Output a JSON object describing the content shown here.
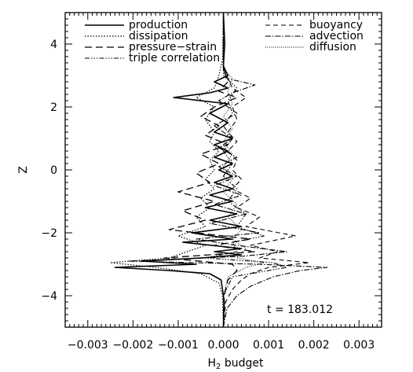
{
  "chart_data": {
    "type": "line",
    "xlabel": "H",
    "xlabel_sub": "2",
    "xlabel_suffix": " budget",
    "ylabel": "Z",
    "xlim": [
      -0.0035,
      0.0035
    ],
    "ylim": [
      -5,
      5
    ],
    "x_ticks": [
      -0.003,
      -0.002,
      -0.001,
      0.0,
      0.001,
      0.002,
      0.003
    ],
    "x_tick_labels": [
      "−0.003",
      "−0.002",
      "−0.001",
      "0.000",
      "0.001",
      "0.002",
      "0.003"
    ],
    "y_ticks": [
      -4,
      -2,
      0,
      2,
      4
    ],
    "y_tick_labels": [
      "−4",
      "−2",
      "0",
      "2",
      "4"
    ],
    "annotation": "t = 183.012",
    "legend_left": [
      "production",
      "dissipation",
      "pressure−strain",
      "triple correlation"
    ],
    "legend_right": [
      "buoyancy",
      "advection",
      "diffusion"
    ],
    "series": [
      {
        "name": "production",
        "dash": "solid",
        "color": "#000000",
        "width": 1.6,
        "points": [
          [
            -5,
            0
          ],
          [
            -4.2,
            2e-05
          ],
          [
            -3.8,
            -2e-05
          ],
          [
            -3.5,
            -5e-05
          ],
          [
            -3.3,
            -0.0003
          ],
          [
            -3.2,
            -0.0012
          ],
          [
            -3.1,
            -0.0024
          ],
          [
            -3.0,
            -0.0006
          ],
          [
            -2.9,
            -0.0018
          ],
          [
            -2.8,
            -0.0005
          ],
          [
            -2.7,
            0.0004
          ],
          [
            -2.6,
            -0.0002
          ],
          [
            -2.5,
            0.0004
          ],
          [
            -2.3,
            -0.0009
          ],
          [
            -2.2,
            0.0002
          ],
          [
            -2.0,
            -0.0007
          ],
          [
            -1.8,
            0.0004
          ],
          [
            -1.6,
            -0.0003
          ],
          [
            -1.4,
            0.0003
          ],
          [
            -1.2,
            -0.0004
          ],
          [
            -1.0,
            0.0002
          ],
          [
            -0.8,
            -0.0003
          ],
          [
            -0.6,
            0.0002
          ],
          [
            -0.4,
            -0.0002
          ],
          [
            -0.2,
            0.0002
          ],
          [
            0.0,
            -0.0001
          ],
          [
            0.2,
            0.0002
          ],
          [
            0.4,
            -0.0002
          ],
          [
            0.6,
            0.0001
          ],
          [
            0.8,
            -0.0002
          ],
          [
            1.0,
            0.0002
          ],
          [
            1.2,
            -0.0002
          ],
          [
            1.5,
            0.0001
          ],
          [
            1.8,
            -0.0003
          ],
          [
            2.1,
            0.0001
          ],
          [
            2.3,
            -0.0011
          ],
          [
            2.45,
            -0.0003
          ],
          [
            2.6,
            0.0001
          ],
          [
            2.8,
            -0.0002
          ],
          [
            3.0,
            0.0001
          ],
          [
            3.3,
            0.0
          ],
          [
            4.0,
            3e-05
          ],
          [
            5,
            0
          ]
        ]
      },
      {
        "name": "dissipation",
        "dash": "1.5,2",
        "color": "#000000",
        "width": 1.2,
        "points": [
          [
            -5,
            0
          ],
          [
            -4,
            -2e-05
          ],
          [
            -3.6,
            -0.0001
          ],
          [
            -3.3,
            -0.0005
          ],
          [
            -3.1,
            -0.0015
          ],
          [
            -2.95,
            -0.0025
          ],
          [
            -2.8,
            -0.0012
          ],
          [
            -2.6,
            -0.0008
          ],
          [
            -2.4,
            -0.0004
          ],
          [
            -2.1,
            -0.001
          ],
          [
            -1.8,
            -0.0004
          ],
          [
            -1.5,
            -0.0006
          ],
          [
            -1.2,
            -0.0003
          ],
          [
            -0.9,
            -0.0005
          ],
          [
            -0.6,
            -0.0002
          ],
          [
            -0.3,
            -0.0004
          ],
          [
            0.0,
            -0.0002
          ],
          [
            0.3,
            -0.0003
          ],
          [
            0.6,
            -0.0001
          ],
          [
            0.9,
            -0.0003
          ],
          [
            1.2,
            -0.0002
          ],
          [
            1.6,
            -0.0004
          ],
          [
            2.0,
            -0.0002
          ],
          [
            2.3,
            -0.0006
          ],
          [
            2.6,
            -0.0002
          ],
          [
            3.0,
            -0.0001
          ],
          [
            3.5,
            -2e-05
          ],
          [
            5,
            0
          ]
        ]
      },
      {
        "name": "pressure−strain",
        "dash": "9,5",
        "color": "#000000",
        "width": 1.3,
        "points": [
          [
            -5,
            0
          ],
          [
            -4,
            2e-05
          ],
          [
            -3.5,
            0.0001
          ],
          [
            -3.2,
            0.0003
          ],
          [
            -3.0,
            0.0002
          ],
          [
            -2.8,
            -0.0013
          ],
          [
            -2.6,
            0.0007
          ],
          [
            -2.4,
            -0.0002
          ],
          [
            -2.2,
            0.0006
          ],
          [
            -1.9,
            -0.0012
          ],
          [
            -1.6,
            -0.0004
          ],
          [
            -1.3,
            -0.0009
          ],
          [
            -1.0,
            -0.0002
          ],
          [
            -0.7,
            -0.001
          ],
          [
            -0.4,
            -0.0003
          ],
          [
            -0.1,
            -0.0006
          ],
          [
            0.2,
            -0.0001
          ],
          [
            0.5,
            -0.0005
          ],
          [
            0.8,
            0.0001
          ],
          [
            1.1,
            -0.0004
          ],
          [
            1.4,
            -0.0001
          ],
          [
            1.7,
            -0.0005
          ],
          [
            2.0,
            -0.0002
          ],
          [
            2.3,
            0.0003
          ],
          [
            2.5,
            -0.0001
          ],
          [
            2.8,
            0.0001
          ],
          [
            3.2,
            0.0
          ],
          [
            5,
            0
          ]
        ]
      },
      {
        "name": "triple correlation",
        "dash": "6,2,1.5,2,1.5,2,1.5,2",
        "color": "#000000",
        "width": 1.1,
        "points": [
          [
            -5,
            0
          ],
          [
            -4,
            0.0
          ],
          [
            -3.4,
            0.0002
          ],
          [
            -3.1,
            0.0014
          ],
          [
            -2.95,
            0.0011
          ],
          [
            -2.8,
            -0.0004
          ],
          [
            -2.6,
            0.0003
          ],
          [
            -2.3,
            0.0002
          ],
          [
            -2.1,
            0.0009
          ],
          [
            -1.8,
            0.0003
          ],
          [
            -1.4,
            0.0005
          ],
          [
            -1.0,
            0.0001
          ],
          [
            -0.6,
            0.0003
          ],
          [
            -0.2,
            0.0
          ],
          [
            0.2,
            0.0002
          ],
          [
            0.6,
            0.0
          ],
          [
            1.0,
            0.0002
          ],
          [
            1.4,
            0.0
          ],
          [
            1.8,
            0.0002
          ],
          [
            2.2,
            0.0001
          ],
          [
            2.6,
            0.0003
          ],
          [
            3.0,
            0.0
          ],
          [
            5,
            0
          ]
        ]
      },
      {
        "name": "buoyancy",
        "dash": "6,4",
        "color": "#000000",
        "width": 1.1,
        "points": [
          [
            -5,
            0
          ],
          [
            -4.2,
            5e-05
          ],
          [
            -3.8,
            0.0002
          ],
          [
            -3.5,
            0.0004
          ],
          [
            -3.3,
            0.0006
          ],
          [
            -3.1,
            0.001
          ],
          [
            -2.95,
            0.0019
          ],
          [
            -2.8,
            0.0008
          ],
          [
            -2.6,
            0.0012
          ],
          [
            -2.4,
            0.0006
          ],
          [
            -2.1,
            0.0016
          ],
          [
            -1.8,
            0.0005
          ],
          [
            -1.5,
            0.0008
          ],
          [
            -1.2,
            0.0003
          ],
          [
            -0.9,
            0.0006
          ],
          [
            -0.6,
            0.0002
          ],
          [
            -0.3,
            0.0004
          ],
          [
            0.0,
            0.0002
          ],
          [
            0.3,
            0.0003
          ],
          [
            0.6,
            0.0001
          ],
          [
            0.9,
            0.0003
          ],
          [
            1.2,
            0.0001
          ],
          [
            1.6,
            0.0003
          ],
          [
            2.0,
            0.0002
          ],
          [
            2.3,
            0.0005
          ],
          [
            2.6,
            0.0002
          ],
          [
            2.9,
            0.0001
          ],
          [
            3.3,
            0.0
          ],
          [
            5,
            0
          ]
        ]
      },
      {
        "name": "advection",
        "dash": "7,2,1.5,2",
        "color": "#000000",
        "width": 1.1,
        "points": [
          [
            -5,
            0
          ],
          [
            -4.4,
            8e-05
          ],
          [
            -4.0,
            0.0003
          ],
          [
            -3.7,
            0.0006
          ],
          [
            -3.4,
            0.0011
          ],
          [
            -3.2,
            0.0017
          ],
          [
            -3.1,
            0.0023
          ],
          [
            -3.0,
            0.0008
          ],
          [
            -2.9,
            -0.0021
          ],
          [
            -2.75,
            0.0004
          ],
          [
            -2.6,
            0.0014
          ],
          [
            -2.4,
            0.0003
          ],
          [
            -2.2,
            -0.0006
          ],
          [
            -2.0,
            0.0008
          ],
          [
            -1.7,
            -0.0003
          ],
          [
            -1.4,
            0.0005
          ],
          [
            -1.1,
            -0.0002
          ],
          [
            -0.8,
            0.0004
          ],
          [
            -0.5,
            -0.0002
          ],
          [
            -0.2,
            0.0003
          ],
          [
            0.1,
            -0.0001
          ],
          [
            0.4,
            0.0003
          ],
          [
            0.7,
            -0.0001
          ],
          [
            1.0,
            0.0002
          ],
          [
            1.4,
            -0.0002
          ],
          [
            1.8,
            0.0003
          ],
          [
            2.2,
            -0.0001
          ],
          [
            2.45,
            0.0002
          ],
          [
            2.7,
            0.0007
          ],
          [
            2.9,
            0.0001
          ],
          [
            3.2,
            0.0
          ],
          [
            5,
            0
          ]
        ]
      },
      {
        "name": "diffusion",
        "dash": "1,1.5",
        "color": "#000000",
        "width": 0.9,
        "points": [
          [
            -5,
            0
          ],
          [
            -4,
            0.0
          ],
          [
            -3.4,
            0.0001
          ],
          [
            -3.1,
            0.0005
          ],
          [
            -2.95,
            0.0009
          ],
          [
            -2.8,
            0.0003
          ],
          [
            -2.5,
            0.0005
          ],
          [
            -2.2,
            0.0002
          ],
          [
            -1.9,
            0.0004
          ],
          [
            -1.5,
            0.0001
          ],
          [
            -1.1,
            0.0003
          ],
          [
            -0.7,
            0.0
          ],
          [
            -0.3,
            0.0002
          ],
          [
            0.1,
            0.0
          ],
          [
            0.5,
            0.0002
          ],
          [
            0.9,
            0.0
          ],
          [
            1.3,
            0.0002
          ],
          [
            1.7,
            0.0
          ],
          [
            2.1,
            0.0002
          ],
          [
            2.5,
            0.0001
          ],
          [
            2.9,
            0.0002
          ],
          [
            3.2,
            0.0
          ],
          [
            5,
            0
          ]
        ]
      }
    ]
  }
}
